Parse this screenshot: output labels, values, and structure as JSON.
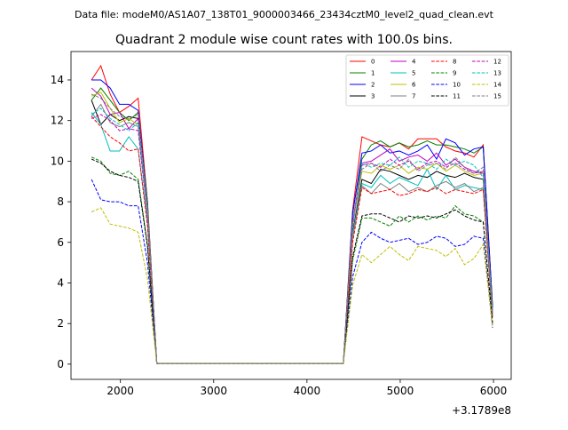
{
  "suptitle": "Data file: modeM0/AS1A07_138T01_9000003466_23434cztM0_level2_quad_clean.evt",
  "offset_label": "+3.1789e8",
  "chart_data": {
    "type": "line",
    "title": "Quadrant 2 module wise count rates with 100.0s bins.",
    "xlabel": "",
    "ylabel": "",
    "x_offset": 317890000,
    "xlim": [
      1470,
      6190
    ],
    "ylim": [
      -0.75,
      15.4
    ],
    "xticks": [
      2000,
      3000,
      4000,
      5000,
      6000
    ],
    "xtick_labels": [
      "2000",
      "3000",
      "4000",
      "5000",
      "6000"
    ],
    "yticks": [
      0,
      2,
      4,
      6,
      8,
      10,
      12,
      14
    ],
    "ytick_labels": [
      "0",
      "2",
      "4",
      "6",
      "8",
      "10",
      "12",
      "14"
    ],
    "x": [
      1690,
      1790,
      1890,
      1990,
      2090,
      2190,
      2290,
      2390,
      2490,
      2590,
      2690,
      2790,
      2890,
      2990,
      3090,
      3190,
      3290,
      3390,
      3490,
      3590,
      3690,
      3790,
      3890,
      3990,
      4090,
      4190,
      4290,
      4390,
      4490,
      4590,
      4690,
      4790,
      4890,
      4990,
      5090,
      5190,
      5290,
      5390,
      5490,
      5590,
      5690,
      5790,
      5890,
      5990
    ],
    "legend_location": "upper right",
    "series": [
      {
        "name": "0",
        "color": "#ff0000",
        "dash": "solid",
        "values": [
          14.0,
          14.7,
          13.3,
          12.4,
          12.7,
          13.1,
          8.0,
          0.02,
          0.02,
          0.02,
          0.02,
          0.02,
          0.02,
          0.02,
          0.02,
          0.02,
          0.02,
          0.02,
          0.02,
          0.02,
          0.02,
          0.02,
          0.02,
          0.02,
          0.02,
          0.02,
          0.02,
          0.02,
          7.6,
          11.2,
          11.0,
          10.8,
          10.7,
          10.9,
          10.6,
          11.1,
          11.1,
          11.1,
          10.7,
          10.5,
          10.4,
          10.2,
          10.8,
          2.8
        ]
      },
      {
        "name": "1",
        "color": "#008000",
        "dash": "solid",
        "values": [
          13.0,
          13.6,
          13.0,
          12.4,
          12.0,
          12.4,
          8.0,
          0.02,
          0.02,
          0.02,
          0.02,
          0.02,
          0.02,
          0.02,
          0.02,
          0.02,
          0.02,
          0.02,
          0.02,
          0.02,
          0.02,
          0.02,
          0.02,
          0.02,
          0.02,
          0.02,
          0.02,
          0.02,
          7.5,
          10.1,
          10.8,
          11.0,
          10.7,
          10.9,
          10.7,
          10.8,
          11.0,
          10.8,
          10.8,
          10.7,
          10.6,
          10.4,
          10.7,
          2.9
        ]
      },
      {
        "name": "2",
        "color": "#0000ff",
        "dash": "solid",
        "values": [
          14.0,
          14.0,
          13.6,
          12.8,
          12.8,
          12.5,
          7.8,
          0.02,
          0.02,
          0.02,
          0.02,
          0.02,
          0.02,
          0.02,
          0.02,
          0.02,
          0.02,
          0.02,
          0.02,
          0.02,
          0.02,
          0.02,
          0.02,
          0.02,
          0.02,
          0.02,
          0.02,
          0.02,
          7.4,
          10.4,
          10.5,
          10.8,
          10.4,
          10.5,
          10.3,
          10.5,
          10.8,
          10.1,
          11.1,
          10.9,
          10.3,
          10.6,
          10.7,
          2.8
        ]
      },
      {
        "name": "3",
        "color": "#000000",
        "dash": "solid",
        "values": [
          13.0,
          11.8,
          12.3,
          12.0,
          12.2,
          12.1,
          7.6,
          0.02,
          0.02,
          0.02,
          0.02,
          0.02,
          0.02,
          0.02,
          0.02,
          0.02,
          0.02,
          0.02,
          0.02,
          0.02,
          0.02,
          0.02,
          0.02,
          0.02,
          0.02,
          0.02,
          0.02,
          0.02,
          6.5,
          9.1,
          8.9,
          9.6,
          9.5,
          9.3,
          9.1,
          9.3,
          9.2,
          9.5,
          9.3,
          9.2,
          9.4,
          9.2,
          9.1,
          2.6
        ]
      },
      {
        "name": "4",
        "color": "#bf00bf",
        "dash": "solid",
        "values": [
          13.6,
          13.2,
          12.3,
          12.4,
          11.6,
          12.1,
          7.6,
          0.02,
          0.02,
          0.02,
          0.02,
          0.02,
          0.02,
          0.02,
          0.02,
          0.02,
          0.02,
          0.02,
          0.02,
          0.02,
          0.02,
          0.02,
          0.02,
          0.02,
          0.02,
          0.02,
          0.02,
          0.02,
          7.0,
          9.9,
          10.0,
          10.3,
          10.6,
          10.0,
          10.2,
          10.3,
          10.0,
          10.4,
          9.8,
          10.1,
          9.7,
          9.5,
          9.4,
          2.6
        ]
      },
      {
        "name": "5",
        "color": "#00bfbf",
        "dash": "solid",
        "values": [
          12.4,
          11.8,
          10.5,
          10.5,
          11.2,
          10.6,
          7.0,
          0.02,
          0.02,
          0.02,
          0.02,
          0.02,
          0.02,
          0.02,
          0.02,
          0.02,
          0.02,
          0.02,
          0.02,
          0.02,
          0.02,
          0.02,
          0.02,
          0.02,
          0.02,
          0.02,
          0.02,
          0.02,
          6.4,
          8.9,
          8.7,
          9.3,
          8.9,
          9.2,
          9.0,
          8.8,
          9.6,
          8.6,
          9.3,
          8.6,
          8.8,
          8.7,
          8.6,
          2.3
        ]
      },
      {
        "name": "6",
        "color": "#bfbf00",
        "dash": "solid",
        "values": [
          13.2,
          13.4,
          12.6,
          11.9,
          12.1,
          11.8,
          7.6,
          0.02,
          0.02,
          0.02,
          0.02,
          0.02,
          0.02,
          0.02,
          0.02,
          0.02,
          0.02,
          0.02,
          0.02,
          0.02,
          0.02,
          0.02,
          0.02,
          0.02,
          0.02,
          0.02,
          0.02,
          0.02,
          6.9,
          9.5,
          9.4,
          9.8,
          9.6,
          9.8,
          9.4,
          9.7,
          9.6,
          9.9,
          9.5,
          9.8,
          9.5,
          9.3,
          9.4,
          2.5
        ]
      },
      {
        "name": "7",
        "color": "#808080",
        "dash": "solid",
        "values": [
          12.2,
          12.8,
          11.9,
          11.7,
          11.9,
          11.7,
          7.4,
          0.02,
          0.02,
          0.02,
          0.02,
          0.02,
          0.02,
          0.02,
          0.02,
          0.02,
          0.02,
          0.02,
          0.02,
          0.02,
          0.02,
          0.02,
          0.02,
          0.02,
          0.02,
          0.02,
          0.02,
          0.02,
          6.2,
          8.8,
          8.4,
          8.9,
          8.6,
          8.9,
          8.5,
          8.7,
          8.5,
          8.8,
          9.0,
          8.7,
          8.9,
          8.5,
          8.7,
          2.3
        ]
      },
      {
        "name": "8",
        "color": "#ff0000",
        "dash": "dashed",
        "values": [
          12.2,
          11.7,
          11.2,
          10.9,
          10.5,
          10.6,
          6.8,
          0.02,
          0.02,
          0.02,
          0.02,
          0.02,
          0.02,
          0.02,
          0.02,
          0.02,
          0.02,
          0.02,
          0.02,
          0.02,
          0.02,
          0.02,
          0.02,
          0.02,
          0.02,
          0.02,
          0.02,
          0.02,
          6.0,
          8.7,
          8.4,
          8.5,
          8.6,
          8.3,
          8.4,
          8.6,
          8.5,
          8.7,
          8.4,
          8.6,
          8.5,
          8.4,
          8.6,
          2.3
        ]
      },
      {
        "name": "9",
        "color": "#008000",
        "dash": "dashed",
        "values": [
          10.2,
          10.0,
          9.4,
          9.3,
          9.5,
          9.1,
          5.9,
          0.02,
          0.02,
          0.02,
          0.02,
          0.02,
          0.02,
          0.02,
          0.02,
          0.02,
          0.02,
          0.02,
          0.02,
          0.02,
          0.02,
          0.02,
          0.02,
          0.02,
          0.02,
          0.02,
          0.02,
          0.02,
          5.1,
          7.2,
          7.2,
          7.0,
          6.8,
          7.3,
          7.0,
          7.3,
          7.1,
          7.3,
          7.2,
          7.8,
          7.4,
          7.3,
          7.0,
          2.0
        ]
      },
      {
        "name": "10",
        "color": "#0000ff",
        "dash": "dashed",
        "values": [
          9.1,
          8.1,
          8.0,
          8.0,
          7.8,
          7.8,
          5.0,
          0.02,
          0.02,
          0.02,
          0.02,
          0.02,
          0.02,
          0.02,
          0.02,
          0.02,
          0.02,
          0.02,
          0.02,
          0.02,
          0.02,
          0.02,
          0.02,
          0.02,
          0.02,
          0.02,
          0.02,
          0.02,
          4.3,
          6.0,
          6.5,
          6.2,
          6.0,
          6.1,
          6.2,
          5.9,
          6.0,
          6.3,
          6.2,
          5.8,
          5.9,
          6.3,
          6.2,
          1.8
        ]
      },
      {
        "name": "11",
        "color": "#000000",
        "dash": "dashed",
        "values": [
          10.1,
          9.9,
          9.5,
          9.3,
          9.2,
          9.0,
          5.8,
          0.02,
          0.02,
          0.02,
          0.02,
          0.02,
          0.02,
          0.02,
          0.02,
          0.02,
          0.02,
          0.02,
          0.02,
          0.02,
          0.02,
          0.02,
          0.02,
          0.02,
          0.02,
          0.02,
          0.02,
          0.02,
          5.3,
          7.3,
          7.4,
          7.4,
          7.2,
          7.0,
          7.3,
          7.2,
          7.3,
          7.2,
          7.4,
          7.6,
          7.3,
          7.1,
          7.0,
          2.0
        ]
      },
      {
        "name": "12",
        "color": "#bf00bf",
        "dash": "dashed",
        "values": [
          12.1,
          12.3,
          12.0,
          11.5,
          11.6,
          11.5,
          7.3,
          0.02,
          0.02,
          0.02,
          0.02,
          0.02,
          0.02,
          0.02,
          0.02,
          0.02,
          0.02,
          0.02,
          0.02,
          0.02,
          0.02,
          0.02,
          0.02,
          0.02,
          0.02,
          0.02,
          0.02,
          0.02,
          6.8,
          9.8,
          9.9,
          9.7,
          10.1,
          9.8,
          10.0,
          9.6,
          9.9,
          10.0,
          9.7,
          9.9,
          9.6,
          9.4,
          9.5,
          2.5
        ]
      },
      {
        "name": "13",
        "color": "#00bfbf",
        "dash": "dashed",
        "values": [
          12.3,
          12.6,
          12.1,
          11.8,
          11.5,
          11.9,
          7.5,
          0.02,
          0.02,
          0.02,
          0.02,
          0.02,
          0.02,
          0.02,
          0.02,
          0.02,
          0.02,
          0.02,
          0.02,
          0.02,
          0.02,
          0.02,
          0.02,
          0.02,
          0.02,
          0.02,
          0.02,
          0.02,
          6.9,
          9.9,
          9.7,
          9.9,
          9.8,
          10.2,
          9.7,
          10.0,
          9.9,
          9.6,
          10.1,
          9.8,
          10.0,
          9.8,
          9.2,
          2.6
        ]
      },
      {
        "name": "14",
        "color": "#bfbf00",
        "dash": "dashed",
        "values": [
          7.5,
          7.7,
          6.9,
          6.8,
          6.7,
          6.5,
          4.2,
          0.02,
          0.02,
          0.02,
          0.02,
          0.02,
          0.02,
          0.02,
          0.02,
          0.02,
          0.02,
          0.02,
          0.02,
          0.02,
          0.02,
          0.02,
          0.02,
          0.02,
          0.02,
          0.02,
          0.02,
          0.02,
          3.9,
          5.4,
          5.0,
          5.4,
          5.8,
          5.4,
          5.1,
          5.8,
          5.7,
          5.6,
          5.3,
          5.7,
          4.9,
          5.2,
          5.9,
          1.9
        ]
      },
      {
        "name": "15",
        "color": "#808080",
        "dash": "dashed",
        "values": [
          13.3,
          13.1,
          12.6,
          12.2,
          12.1,
          12.3,
          7.7,
          0.02,
          0.02,
          0.02,
          0.02,
          0.02,
          0.02,
          0.02,
          0.02,
          0.02,
          0.02,
          0.02,
          0.02,
          0.02,
          0.02,
          0.02,
          0.02,
          0.02,
          0.02,
          0.02,
          0.02,
          0.02,
          6.9,
          9.6,
          9.9,
          9.5,
          9.8,
          9.6,
          10.1,
          9.5,
          9.8,
          9.9,
          9.6,
          10.2,
          9.7,
          9.4,
          9.7,
          2.4
        ]
      }
    ]
  }
}
